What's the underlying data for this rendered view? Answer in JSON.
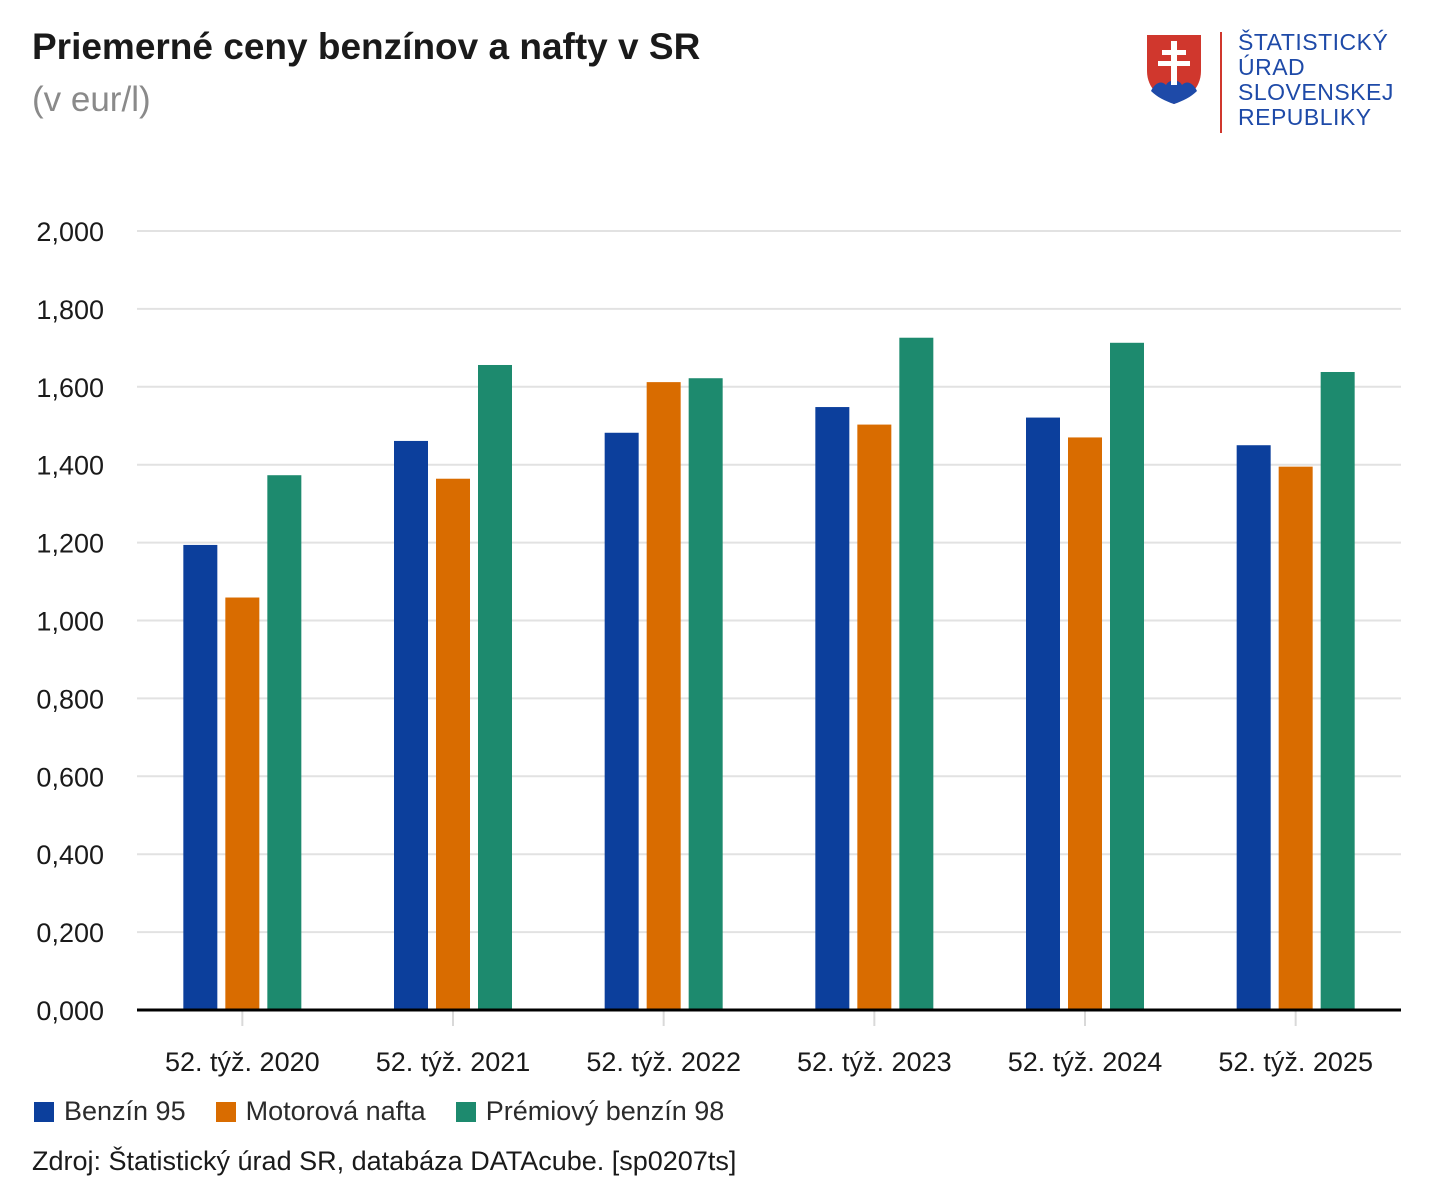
{
  "header": {
    "title": "Priemerné ceny benzínov a nafty v SR",
    "subtitle": "(v eur/l)"
  },
  "logo": {
    "lines": [
      "ŠTATISTICKÝ",
      "ÚRAD",
      "SLOVENSKEJ",
      "REPUBLIKY"
    ],
    "text_color": "#1e4aa8",
    "shield_color": "#d0372d",
    "shield_blue": "#1e4aa8"
  },
  "chart_data": {
    "type": "bar",
    "title": "Priemerné ceny benzínov a nafty v SR",
    "subtitle": "(v eur/l)",
    "xlabel": "",
    "ylabel": "",
    "ylim": [
      0,
      2.0
    ],
    "yticks": [
      0,
      0.2,
      0.4,
      0.6,
      0.8,
      1.0,
      1.2,
      1.4,
      1.6,
      1.8,
      2.0
    ],
    "ytick_labels": [
      "0,000",
      "0,200",
      "0,400",
      "0,600",
      "0,800",
      "1,000",
      "1,200",
      "1,400",
      "1,600",
      "1,800",
      "2,000"
    ],
    "grid": true,
    "legend_position": "bottom-left",
    "categories": [
      "52. týž. 2020",
      "52. týž. 2021",
      "52. týž. 2022",
      "52. týž. 2023",
      "52. týž. 2024",
      "52. týž. 2025"
    ],
    "series": [
      {
        "name": "Benzín 95",
        "color": "#0c3f9c",
        "values": [
          1.194,
          1.461,
          1.482,
          1.548,
          1.521,
          1.45
        ]
      },
      {
        "name": "Motorová nafta",
        "color": "#d96c00",
        "values": [
          1.059,
          1.364,
          1.612,
          1.503,
          1.47,
          1.395
        ]
      },
      {
        "name": "Prémiový benzín 98",
        "color": "#1d8a6e",
        "values": [
          1.373,
          1.656,
          1.622,
          1.726,
          1.713,
          1.638
        ]
      }
    ]
  },
  "footer": {
    "source": "Zdroj: Štatistický úrad SR, databáza DATAcube. [sp0207ts]"
  }
}
